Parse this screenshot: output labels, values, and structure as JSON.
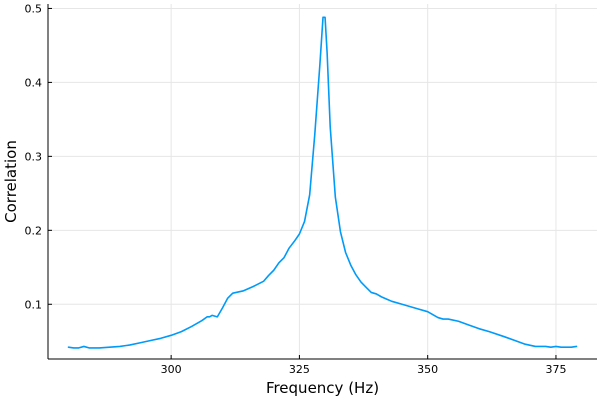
{
  "chart_data": {
    "type": "line",
    "xlabel": "Frequency (Hz)",
    "ylabel": "Correlation",
    "xlim": [
      276,
      383
    ],
    "ylim": [
      0.026,
      0.506
    ],
    "x_ticks": [
      300,
      325,
      350,
      375
    ],
    "y_ticks": [
      0.1,
      0.2,
      0.3,
      0.4,
      0.5
    ],
    "grid": true,
    "legend": "none",
    "series": [
      {
        "color": "#009af9",
        "x": [
          280,
          281,
          282,
          283,
          284,
          286,
          288,
          290,
          292,
          294,
          296,
          298,
          300,
          302,
          304,
          306,
          307,
          307.5,
          308,
          309,
          310,
          311,
          312,
          314,
          316,
          318,
          319,
          320,
          321,
          322,
          323,
          324,
          325,
          326,
          327,
          328,
          329,
          329.6,
          330,
          330.4,
          331,
          332,
          333,
          334,
          335,
          336,
          337,
          338,
          339,
          340,
          341,
          342,
          343,
          345,
          348,
          350,
          352,
          353,
          354,
          356,
          358,
          360,
          362,
          365,
          367,
          369,
          371,
          372,
          373,
          374,
          375,
          376,
          377,
          378,
          379
        ],
        "y": [
          0.042,
          0.041,
          0.041,
          0.043,
          0.041,
          0.041,
          0.042,
          0.043,
          0.045,
          0.048,
          0.051,
          0.054,
          0.058,
          0.063,
          0.07,
          0.078,
          0.083,
          0.083,
          0.085,
          0.083,
          0.095,
          0.108,
          0.115,
          0.118,
          0.124,
          0.131,
          0.139,
          0.146,
          0.156,
          0.163,
          0.176,
          0.185,
          0.195,
          0.212,
          0.248,
          0.33,
          0.425,
          0.488,
          0.488,
          0.44,
          0.34,
          0.245,
          0.198,
          0.17,
          0.153,
          0.14,
          0.13,
          0.123,
          0.116,
          0.114,
          0.11,
          0.107,
          0.104,
          0.1,
          0.094,
          0.09,
          0.082,
          0.08,
          0.08,
          0.077,
          0.072,
          0.067,
          0.063,
          0.056,
          0.051,
          0.046,
          0.043,
          0.043,
          0.043,
          0.042,
          0.043,
          0.042,
          0.042,
          0.042,
          0.043
        ]
      }
    ]
  }
}
